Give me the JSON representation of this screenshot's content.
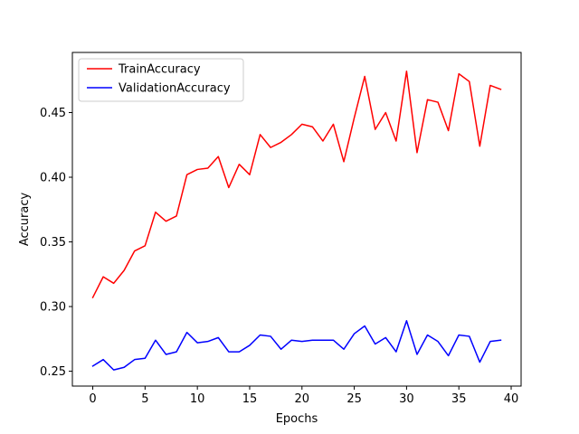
{
  "chart_data": {
    "type": "line",
    "xlabel": "Epochs",
    "ylabel": "Accuracy",
    "xlim": [
      -1.95,
      40.95
    ],
    "ylim": [
      0.2385,
      0.4965
    ],
    "xticks": [
      0,
      5,
      10,
      15,
      20,
      25,
      30,
      35,
      40
    ],
    "yticks": [
      0.25,
      0.3,
      0.35,
      0.4,
      0.45
    ],
    "xtick_labels": [
      "0",
      "5",
      "10",
      "15",
      "20",
      "25",
      "30",
      "35",
      "40"
    ],
    "ytick_labels": [
      "0.25",
      "0.30",
      "0.35",
      "0.40",
      "0.45"
    ],
    "grid": false,
    "legend_position": "upper-left",
    "x": [
      0,
      1,
      2,
      3,
      4,
      5,
      6,
      7,
      8,
      9,
      10,
      11,
      12,
      13,
      14,
      15,
      16,
      17,
      18,
      19,
      20,
      21,
      22,
      23,
      24,
      25,
      26,
      27,
      28,
      29,
      30,
      31,
      32,
      33,
      34,
      35,
      36,
      37,
      38,
      39
    ],
    "series": [
      {
        "name": "TrainAccuracy",
        "color": "#ff0000",
        "values": [
          0.307,
          0.323,
          0.318,
          0.328,
          0.343,
          0.347,
          0.373,
          0.366,
          0.37,
          0.402,
          0.406,
          0.407,
          0.416,
          0.392,
          0.41,
          0.402,
          0.433,
          0.423,
          0.427,
          0.433,
          0.441,
          0.439,
          0.428,
          0.441,
          0.412,
          0.446,
          0.478,
          0.437,
          0.45,
          0.428,
          0.482,
          0.419,
          0.46,
          0.458,
          0.436,
          0.48,
          0.474,
          0.424,
          0.471,
          0.468
        ]
      },
      {
        "name": "ValidationAccuracy",
        "color": "#0000ff",
        "values": [
          0.254,
          0.259,
          0.251,
          0.253,
          0.259,
          0.26,
          0.274,
          0.263,
          0.265,
          0.28,
          0.272,
          0.273,
          0.276,
          0.265,
          0.265,
          0.27,
          0.278,
          0.277,
          0.267,
          0.274,
          0.273,
          0.274,
          0.274,
          0.274,
          0.267,
          0.279,
          0.285,
          0.271,
          0.276,
          0.265,
          0.289,
          0.263,
          0.278,
          0.273,
          0.262,
          0.278,
          0.277,
          0.257,
          0.273,
          0.274
        ]
      }
    ]
  }
}
